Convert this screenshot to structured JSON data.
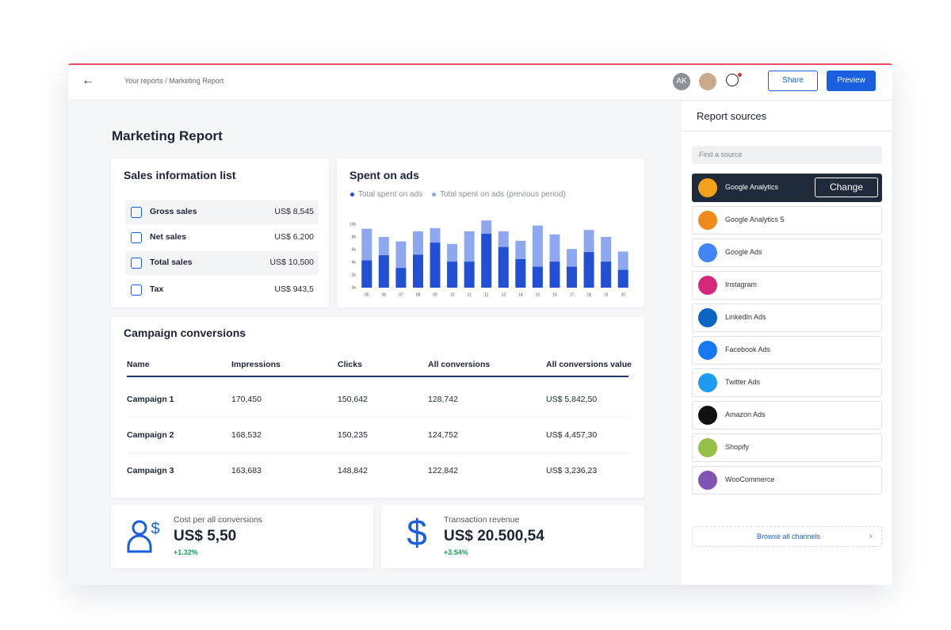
{
  "header": {
    "breadcrumb": "Your reports / Marketing Report",
    "avatar": "AK",
    "share": "Share",
    "preview": "Preview"
  },
  "report": {
    "title": "Marketing Report"
  },
  "sales_list": {
    "title": "Sales information list",
    "rows": [
      {
        "label": "Gross sales",
        "value": "US$ 8,545"
      },
      {
        "label": "Net sales",
        "value": "US$ 6,200"
      },
      {
        "label": "Total sales",
        "value": "US$ 10,500"
      },
      {
        "label": "Tax",
        "value": "US$ 943,5"
      }
    ]
  },
  "chart_data": {
    "type": "bar",
    "title": "Spent on ads",
    "categories": [
      "05",
      "06",
      "07",
      "08",
      "09",
      "10",
      "11",
      "12",
      "13",
      "14",
      "15",
      "16",
      "17",
      "18",
      "19",
      "20"
    ],
    "series": [
      {
        "name": "Total spent on ads (previous period)",
        "color": "#8ea8ef",
        "values": [
          9300,
          8000,
          7300,
          8900,
          9400,
          6900,
          8900,
          10600,
          8900,
          7400,
          9800,
          8400,
          6100,
          9100,
          8000,
          5700
        ]
      },
      {
        "name": "Total spent on ads",
        "color": "#2350d2",
        "values": [
          4300,
          5100,
          3100,
          5200,
          7100,
          4100,
          4100,
          8500,
          6400,
          4500,
          3300,
          4100,
          3300,
          5600,
          4100,
          2800
        ]
      }
    ],
    "ylim": [
      0,
      11000
    ],
    "yticks": [
      {
        "value": 0,
        "label": "0k"
      },
      {
        "value": 2000,
        "label": "2k"
      },
      {
        "value": 4000,
        "label": "4k"
      },
      {
        "value": 6000,
        "label": "6k"
      },
      {
        "value": 8000,
        "label": "8k"
      },
      {
        "value": 10000,
        "label": "10k"
      }
    ],
    "grid": false
  },
  "campaigns": {
    "title": "Campaign conversions",
    "columns": [
      "Name",
      "Impressions",
      "Clicks",
      "All conversions",
      "All conversions value"
    ],
    "rows": [
      [
        "Campaign 1",
        "170,450",
        "150,642",
        "128,742",
        "US$ 5,842,50"
      ],
      [
        "Campaign 2",
        "168,532",
        "150,235",
        "124,752",
        "US$ 4,457,30"
      ],
      [
        "Campaign 3",
        "163,683",
        "148,842",
        "122,842",
        "US$ 3,236,23"
      ]
    ]
  },
  "kpis": [
    {
      "label": "Cost per all conversions",
      "value": "US$ 5,50",
      "change": "+1.32%"
    },
    {
      "label": "Transaction revenue",
      "value": "US$ 20.500,54",
      "change": "+3.54%"
    }
  ],
  "sources": {
    "title": "Report sources",
    "search": "Find a source",
    "action": "Change",
    "items": [
      "Google Analytics",
      "Google Analytics 5",
      "Google Ads",
      "Instagram",
      "LinkedIn Ads",
      "Facebook Ads",
      "Twitter Ads",
      "Amazon Ads",
      "Shopify",
      "WooCommerce"
    ],
    "browse": "Browse all channels"
  }
}
